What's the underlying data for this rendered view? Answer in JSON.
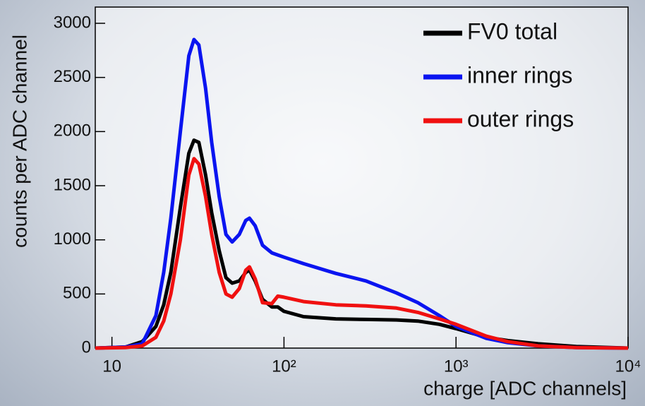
{
  "chart_data": {
    "type": "line",
    "x_label": "charge [ADC channels]",
    "y_label": "counts per ADC channel",
    "x_scale": "log",
    "xlim": [
      8,
      10000
    ],
    "ylim": [
      0,
      3150
    ],
    "xticks": [
      10,
      {
        "value": 100,
        "label": "10²"
      },
      {
        "value": 1000,
        "label": "10³"
      },
      {
        "value": 10000,
        "label": "10⁴"
      }
    ],
    "yticks": [
      0,
      500,
      1000,
      1500,
      2000,
      2500,
      3000
    ],
    "legend": "upper right",
    "x": [
      8,
      12,
      15,
      18,
      20,
      22,
      25,
      28,
      30,
      32,
      35,
      38,
      42,
      46,
      50,
      55,
      60,
      63,
      68,
      75,
      85,
      92,
      100,
      130,
      200,
      300,
      450,
      600,
      800,
      1000,
      1500,
      2000,
      3000,
      5000,
      10000
    ],
    "series": [
      {
        "name": "FV0 total",
        "color": "#000000",
        "values": [
          0,
          10,
          60,
          200,
          400,
          700,
          1300,
          1800,
          1920,
          1900,
          1600,
          1250,
          900,
          650,
          600,
          620,
          700,
          720,
          620,
          450,
          380,
          380,
          340,
          290,
          270,
          265,
          260,
          250,
          220,
          180,
          100,
          70,
          40,
          15,
          0
        ]
      },
      {
        "name": "inner rings",
        "color": "#0a14f0",
        "values": [
          0,
          10,
          40,
          300,
          700,
          1200,
          2000,
          2700,
          2850,
          2800,
          2400,
          1900,
          1400,
          1050,
          980,
          1050,
          1180,
          1200,
          1130,
          950,
          880,
          860,
          840,
          780,
          690,
          620,
          510,
          420,
          300,
          200,
          90,
          50,
          20,
          5,
          0
        ]
      },
      {
        "name": "outer rings",
        "color": "#f01010",
        "values": [
          0,
          5,
          20,
          100,
          250,
          500,
          1000,
          1600,
          1750,
          1700,
          1400,
          1050,
          700,
          500,
          470,
          550,
          720,
          750,
          640,
          420,
          410,
          480,
          470,
          430,
          400,
          390,
          370,
          330,
          270,
          220,
          110,
          60,
          20,
          5,
          0
        ]
      }
    ]
  }
}
